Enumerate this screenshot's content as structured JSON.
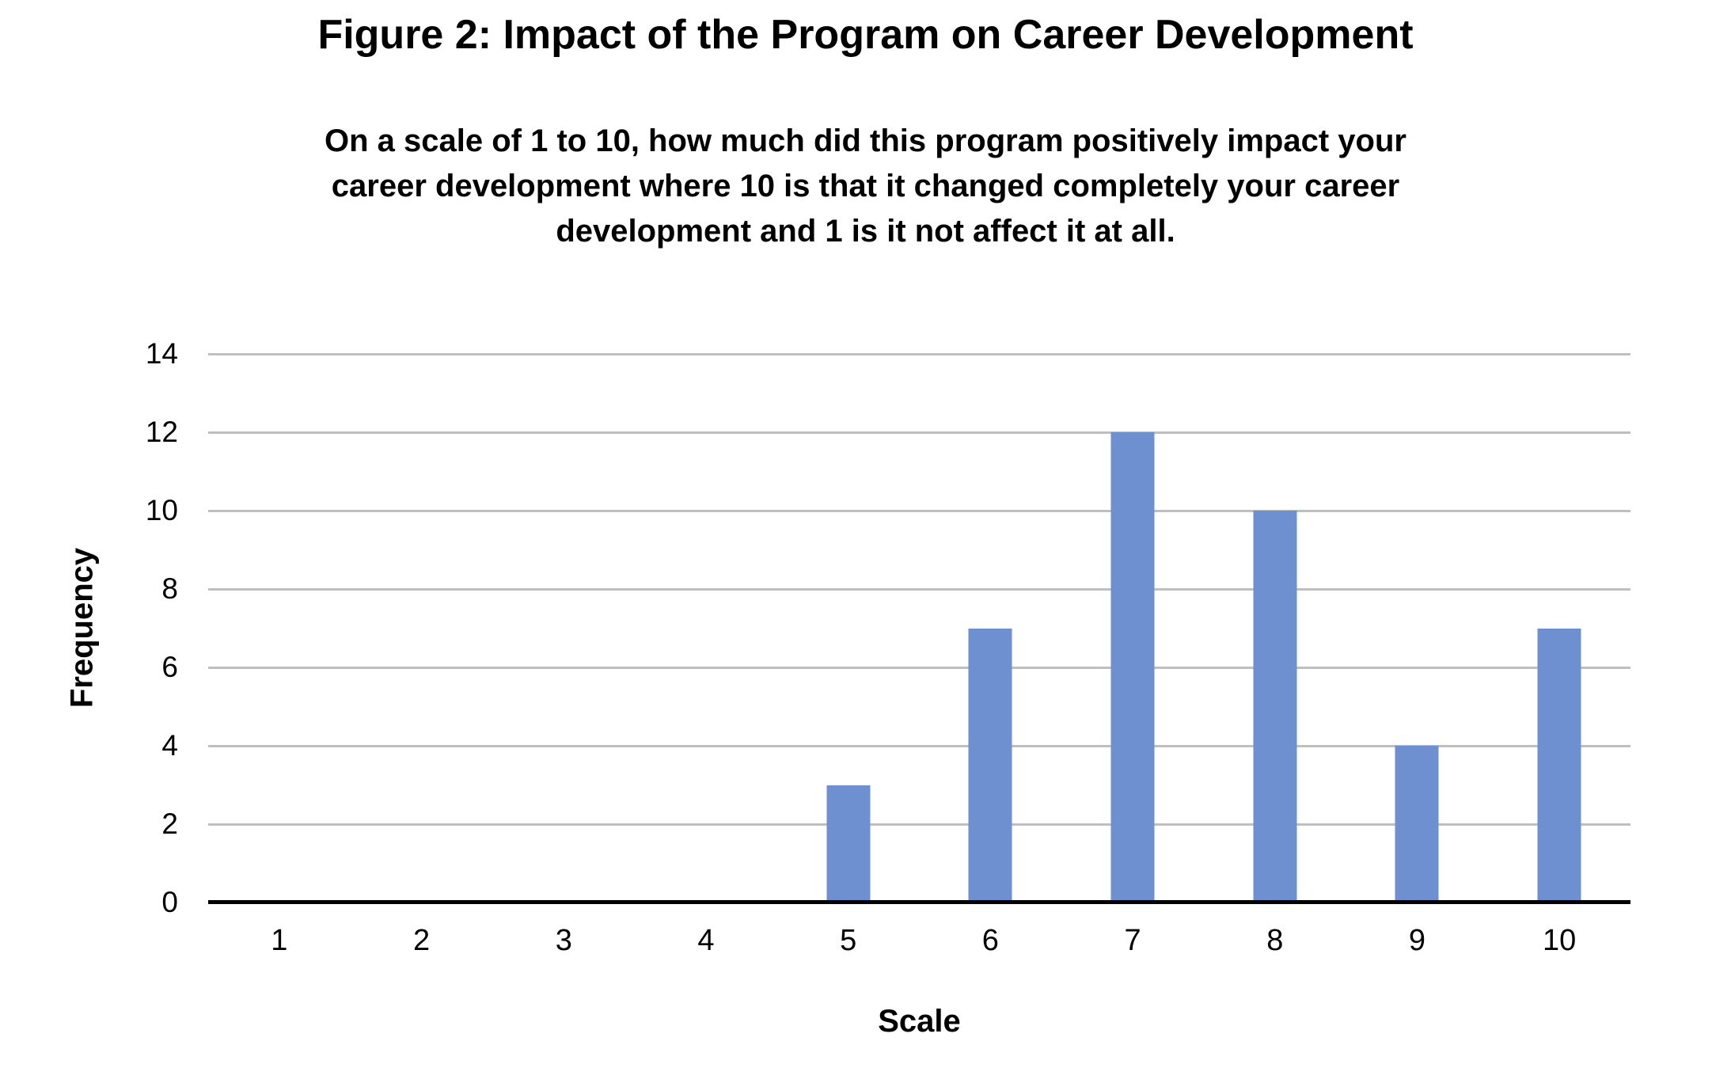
{
  "figure": {
    "title": "Figure 2: Impact of the Program on Career Development",
    "subtitle_lines": [
      "On a scale of 1 to 10, how much did this program positively impact your",
      "career development where 10 is that it changed completely your career",
      "development and 1 is it not affect it at all."
    ]
  },
  "chart_data": {
    "type": "bar",
    "title": "Figure 2: Impact of the Program on Career Development",
    "subtitle": "On a scale of 1 to 10, how much did this program positively impact your career development where 10 is that it changed completely your career development and 1 is it not affect it at all.",
    "categories": [
      "1",
      "2",
      "3",
      "4",
      "5",
      "6",
      "7",
      "8",
      "9",
      "10"
    ],
    "values": [
      0,
      0,
      0,
      0,
      3,
      7,
      12,
      10,
      4,
      7
    ],
    "xlabel": "Scale",
    "ylabel": "Frequency",
    "ylim": [
      0,
      14
    ],
    "yticks": [
      0,
      2,
      4,
      6,
      8,
      10,
      12,
      14
    ],
    "grid": "horizontal",
    "legend_position": "none",
    "bar_color": "#6E90D0",
    "gridline_color": "#BFBFBF",
    "axis_line_color": "#000000",
    "text_color": "#000000",
    "background_color": "#FFFFFF"
  }
}
